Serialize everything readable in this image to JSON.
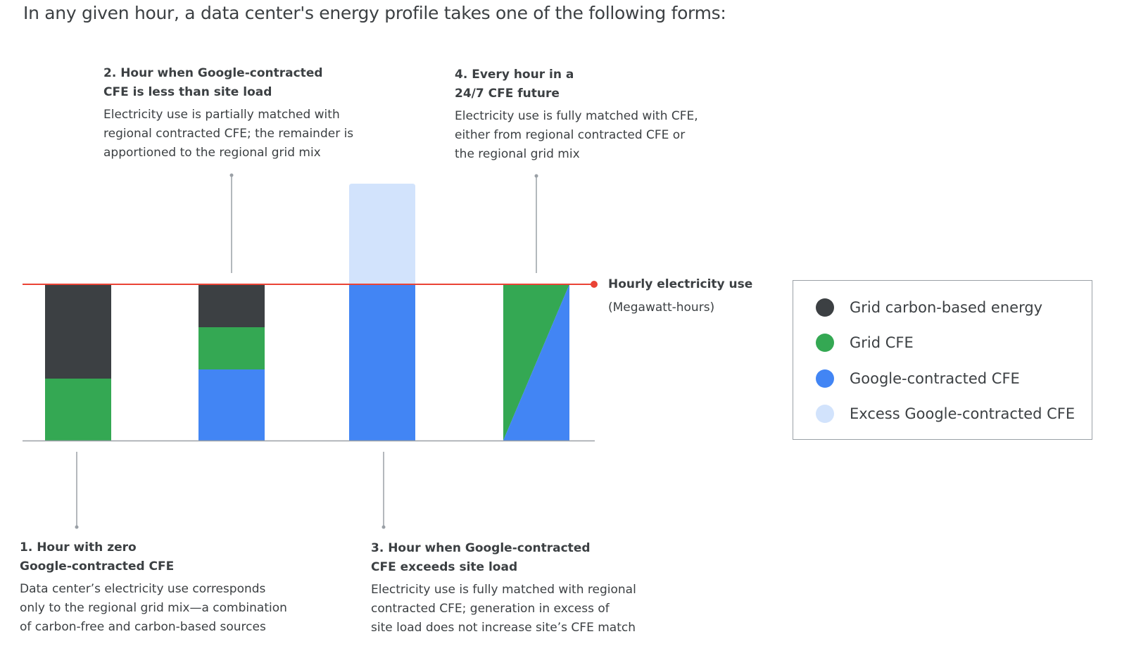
{
  "headline": "In any given hour, a data center's energy profile takes one of the following forms:",
  "callouts": [
    {
      "title": "2. Hour when Google-contracted\nCFE is less than site load",
      "description": "Electricity use is partially matched with\nregional contracted CFE; the remainder is\napportioned to the regional grid mix"
    },
    {
      "title": "4. Every hour in a\n24/7 CFE future",
      "description": "Electricity use is fully matched with CFE,\neither from regional contracted CFE or\nthe regional grid mix"
    },
    {
      "title": "1. Hour with zero\nGoogle-contracted CFE",
      "description": "Data center’s electricity use corresponds\nonly to the regional grid mix—a combination\nof carbon-free and carbon-based sources"
    },
    {
      "title": "3. Hour when Google-contracted\nCFE exceeds site load",
      "description": "Electricity use is fully matched with regional\ncontracted CFE; generation in excess of\nsite load does not increase site’s CFE match"
    }
  ],
  "reference_line": {
    "label": "Hourly electricity use",
    "sublabel": "(Megawatt-hours)"
  },
  "legend": [
    {
      "label": "Grid carbon-based energy",
      "color": "#3c4043"
    },
    {
      "label": "Grid CFE",
      "color": "#34a853"
    },
    {
      "label": "Google-contracted CFE",
      "color": "#4285f4"
    },
    {
      "label": "Excess Google-contracted CFE",
      "color": "#d2e3fc"
    }
  ],
  "colors": {
    "reference_line": "#ea4335",
    "axis": "#9aa0a6",
    "leader": "#9aa0a6"
  },
  "hours": [
    {
      "segments": [
        {
          "type": "Grid CFE",
          "share": 0.4
        },
        {
          "type": "Grid carbon-based energy",
          "share": 0.6
        }
      ]
    },
    {
      "segments": [
        {
          "type": "Google-contracted CFE",
          "share": 0.46
        },
        {
          "type": "Grid CFE",
          "share": 0.27
        },
        {
          "type": "Grid carbon-based energy",
          "share": 0.27
        }
      ]
    },
    {
      "segments": [
        {
          "type": "Google-contracted CFE",
          "share": 1.0
        },
        {
          "type": "Excess Google-contracted CFE",
          "share": 0.64
        }
      ]
    },
    {
      "shape": "diagonal-split",
      "segments": [
        {
          "type": "Grid CFE"
        },
        {
          "type": "Google-contracted CFE"
        }
      ]
    }
  ]
}
